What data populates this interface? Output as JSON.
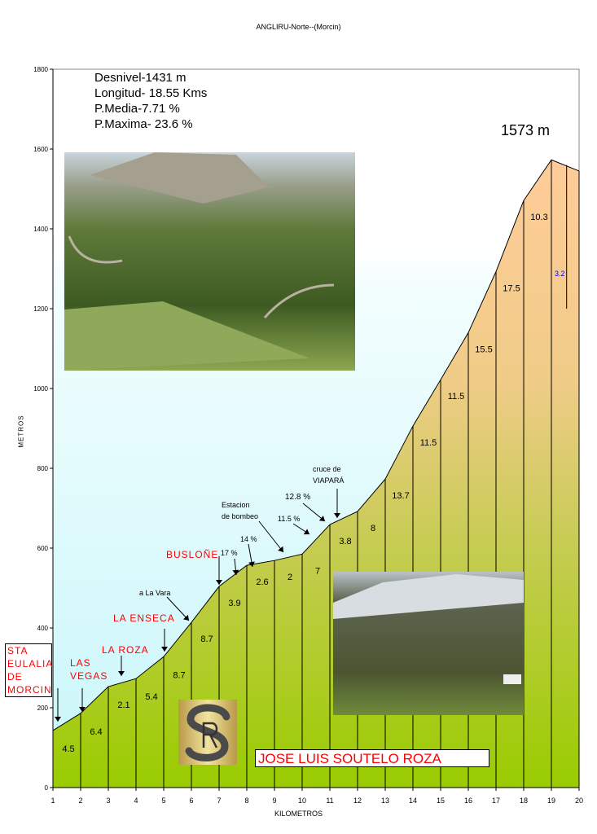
{
  "chart_data": {
    "type": "area",
    "title": "ANGLIRU-Norte--(Morcin)",
    "xlabel": "KILOMETROS",
    "ylabel": "METROS",
    "xlim": [
      1,
      20
    ],
    "ylim": [
      0,
      1800
    ],
    "x_ticks": [
      "1",
      "2",
      "3",
      "4",
      "5",
      "6",
      "7",
      "8",
      "9",
      "10",
      "11",
      "12",
      "13",
      "14",
      "15",
      "16",
      "17",
      "18",
      "19",
      "20"
    ],
    "y_ticks": [
      "0",
      "200",
      "400",
      "600",
      "800",
      "1000",
      "1200",
      "1400",
      "1600",
      "1800"
    ],
    "profile": {
      "km": [
        1,
        2,
        3,
        4,
        5,
        6,
        7,
        8,
        9,
        10,
        11,
        12,
        13,
        14,
        15,
        16,
        17,
        18,
        19,
        20
      ],
      "elevation_m": [
        143,
        186,
        253,
        273,
        328,
        414,
        504,
        557,
        569,
        585,
        659,
        692,
        773,
        906,
        1022,
        1140,
        1293,
        1471,
        1573,
        1545
      ]
    },
    "segment_gradients": [
      "4.5",
      "6.4",
      "2.1",
      "5.4",
      "8.7",
      "8.7",
      "3.9",
      "2.6",
      "2",
      "7",
      "3.8",
      "8",
      "13.7",
      "11.5",
      "11.5",
      "15.5",
      "17.5",
      "10.3",
      "3.2"
    ],
    "peak_label": "1573 m",
    "stats": [
      "Desnivel-1431 m",
      "Longitud- 18.55 Kms",
      "P.Media-7.71 %",
      "P.Maxima- 23.6 %"
    ],
    "places": {
      "start": [
        "STA",
        "EULALIA",
        "DE",
        "MORCIN"
      ],
      "las_vegas": [
        "LAS",
        "VEGAS"
      ],
      "la_roza": "LA ROZA",
      "la_enseca": "LA ENSECA",
      "buslone": "BUSLOÑE"
    },
    "notes": {
      "a_la_vara": "a La Vara",
      "p17": "17  %",
      "p14": "14 %",
      "estacion": [
        "Estacion",
        "de bombeo"
      ],
      "p115": "11.5  %",
      "p128": "12.8  %",
      "cruce": [
        "cruce de",
        "VIAPARÁ"
      ]
    },
    "author": "JOSE LUIS SOUTELO ROZA",
    "logo_text": "SR",
    "colors": {
      "sky": "#d8fbfd",
      "fill_low": "#99cc00",
      "fill_high": "#ffcc99",
      "place_red": "#ff0000",
      "highlight_blue": "#0000ff"
    },
    "grid": false,
    "legend": "none"
  }
}
